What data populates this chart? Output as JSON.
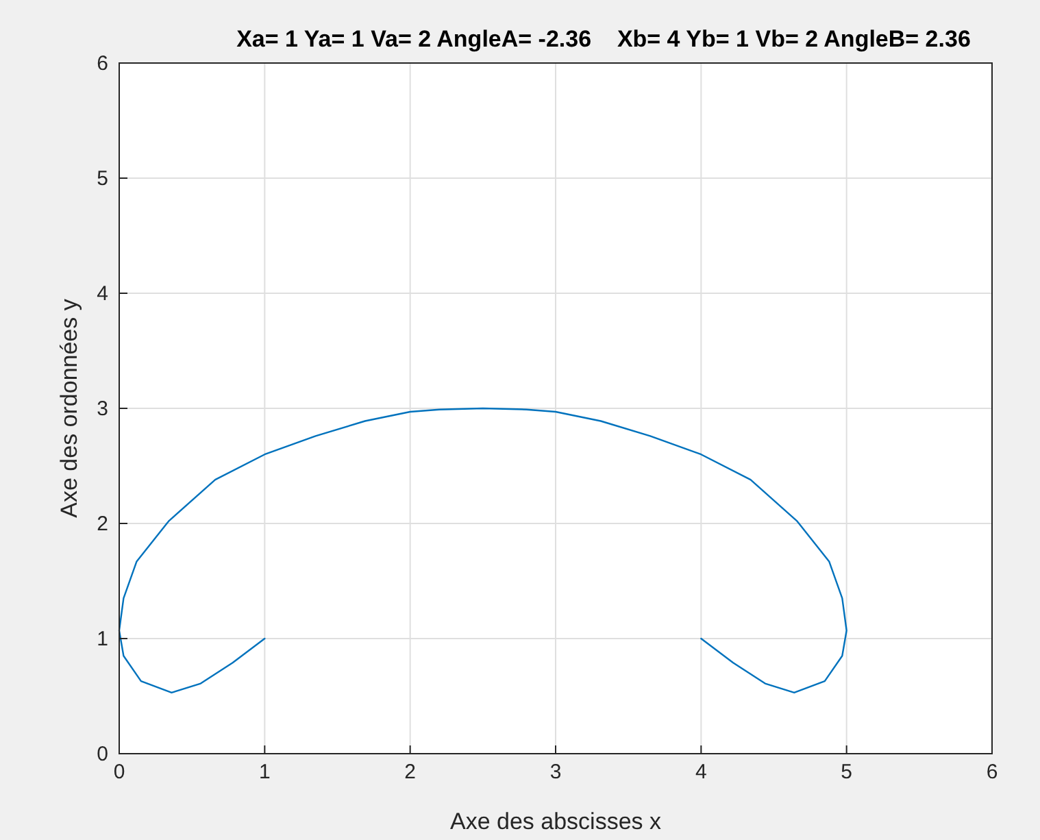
{
  "chart_data": {
    "type": "line",
    "title": "Xa= 1 Ya= 1 Va= 2 AngleA= -2.36    Xb= 4 Yb= 1 Vb= 2 AngleB= 2.36",
    "xlabel": "Axe des abscisses x",
    "ylabel": "Axe des ordonnées y",
    "xlim": [
      0,
      6
    ],
    "ylim": [
      0,
      6
    ],
    "xticks": [
      0,
      1,
      2,
      3,
      4,
      5,
      6
    ],
    "yticks": [
      0,
      1,
      2,
      3,
      4,
      5,
      6
    ],
    "grid": true,
    "marker": "none",
    "line_style": "solid",
    "series": [
      {
        "color": "#0072bd",
        "x": [
          1,
          0.78,
          0.56,
          0.36,
          0.15,
          0.03,
          0,
          0.03,
          0.12,
          0.34,
          0.66,
          1,
          1.35,
          1.69,
          2,
          2.2,
          2.5,
          2.8,
          3,
          3.31,
          3.65,
          4,
          4.34,
          4.66,
          4.88,
          4.97,
          5,
          4.97,
          4.85,
          4.64,
          4.44,
          4.22,
          4
        ],
        "values": [
          1,
          0.79,
          0.61,
          0.53,
          0.63,
          0.85,
          1.07,
          1.35,
          1.67,
          2.02,
          2.38,
          2.6,
          2.76,
          2.89,
          2.97,
          2.99,
          3,
          2.99,
          2.97,
          2.89,
          2.76,
          2.6,
          2.38,
          2.02,
          1.67,
          1.35,
          1.07,
          0.85,
          0.63,
          0.53,
          0.61,
          0.79,
          1
        ]
      }
    ]
  }
}
